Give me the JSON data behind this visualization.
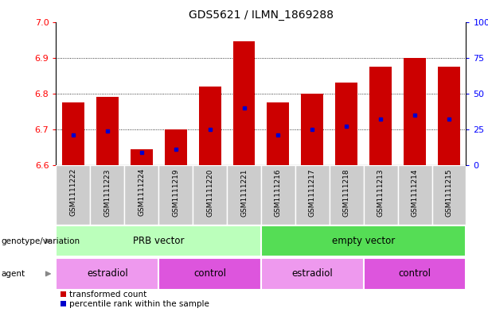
{
  "title": "GDS5621 / ILMN_1869288",
  "samples": [
    "GSM1111222",
    "GSM1111223",
    "GSM1111224",
    "GSM1111219",
    "GSM1111220",
    "GSM1111221",
    "GSM1111216",
    "GSM1111217",
    "GSM1111218",
    "GSM1111213",
    "GSM1111214",
    "GSM1111215"
  ],
  "bar_bottoms": [
    6.6,
    6.6,
    6.6,
    6.6,
    6.6,
    6.6,
    6.6,
    6.6,
    6.6,
    6.6,
    6.6,
    6.6
  ],
  "bar_tops": [
    6.775,
    6.79,
    6.645,
    6.7,
    6.82,
    6.945,
    6.775,
    6.8,
    6.83,
    6.875,
    6.9,
    6.875
  ],
  "percentile_values": [
    6.685,
    6.695,
    6.635,
    6.645,
    6.7,
    6.76,
    6.685,
    6.7,
    6.71,
    6.73,
    6.74,
    6.73
  ],
  "ylim_left": [
    6.6,
    7.0
  ],
  "ylim_right": [
    0,
    100
  ],
  "yticks_left": [
    6.6,
    6.7,
    6.8,
    6.9,
    7.0
  ],
  "yticks_right": [
    0,
    25,
    50,
    75,
    100
  ],
  "ytick_labels_right": [
    "0",
    "25",
    "50",
    "75",
    "100%"
  ],
  "bar_color": "#cc0000",
  "percentile_color": "#0000cc",
  "xtick_bg": "#d0d0d0",
  "genotype_groups": [
    {
      "label": "PRB vector",
      "start": 0,
      "end": 5,
      "color": "#bbffbb"
    },
    {
      "label": "empty vector",
      "start": 6,
      "end": 11,
      "color": "#55dd55"
    }
  ],
  "agent_groups": [
    {
      "label": "estradiol",
      "start": 0,
      "end": 2,
      "color": "#ee99ee"
    },
    {
      "label": "control",
      "start": 3,
      "end": 5,
      "color": "#dd55dd"
    },
    {
      "label": "estradiol",
      "start": 6,
      "end": 8,
      "color": "#ee99ee"
    },
    {
      "label": "control",
      "start": 9,
      "end": 11,
      "color": "#dd55dd"
    }
  ],
  "legend_items": [
    {
      "label": "transformed count",
      "color": "#cc0000"
    },
    {
      "label": "percentile rank within the sample",
      "color": "#0000cc"
    }
  ],
  "genotype_label": "genotype/variation",
  "agent_label": "agent"
}
